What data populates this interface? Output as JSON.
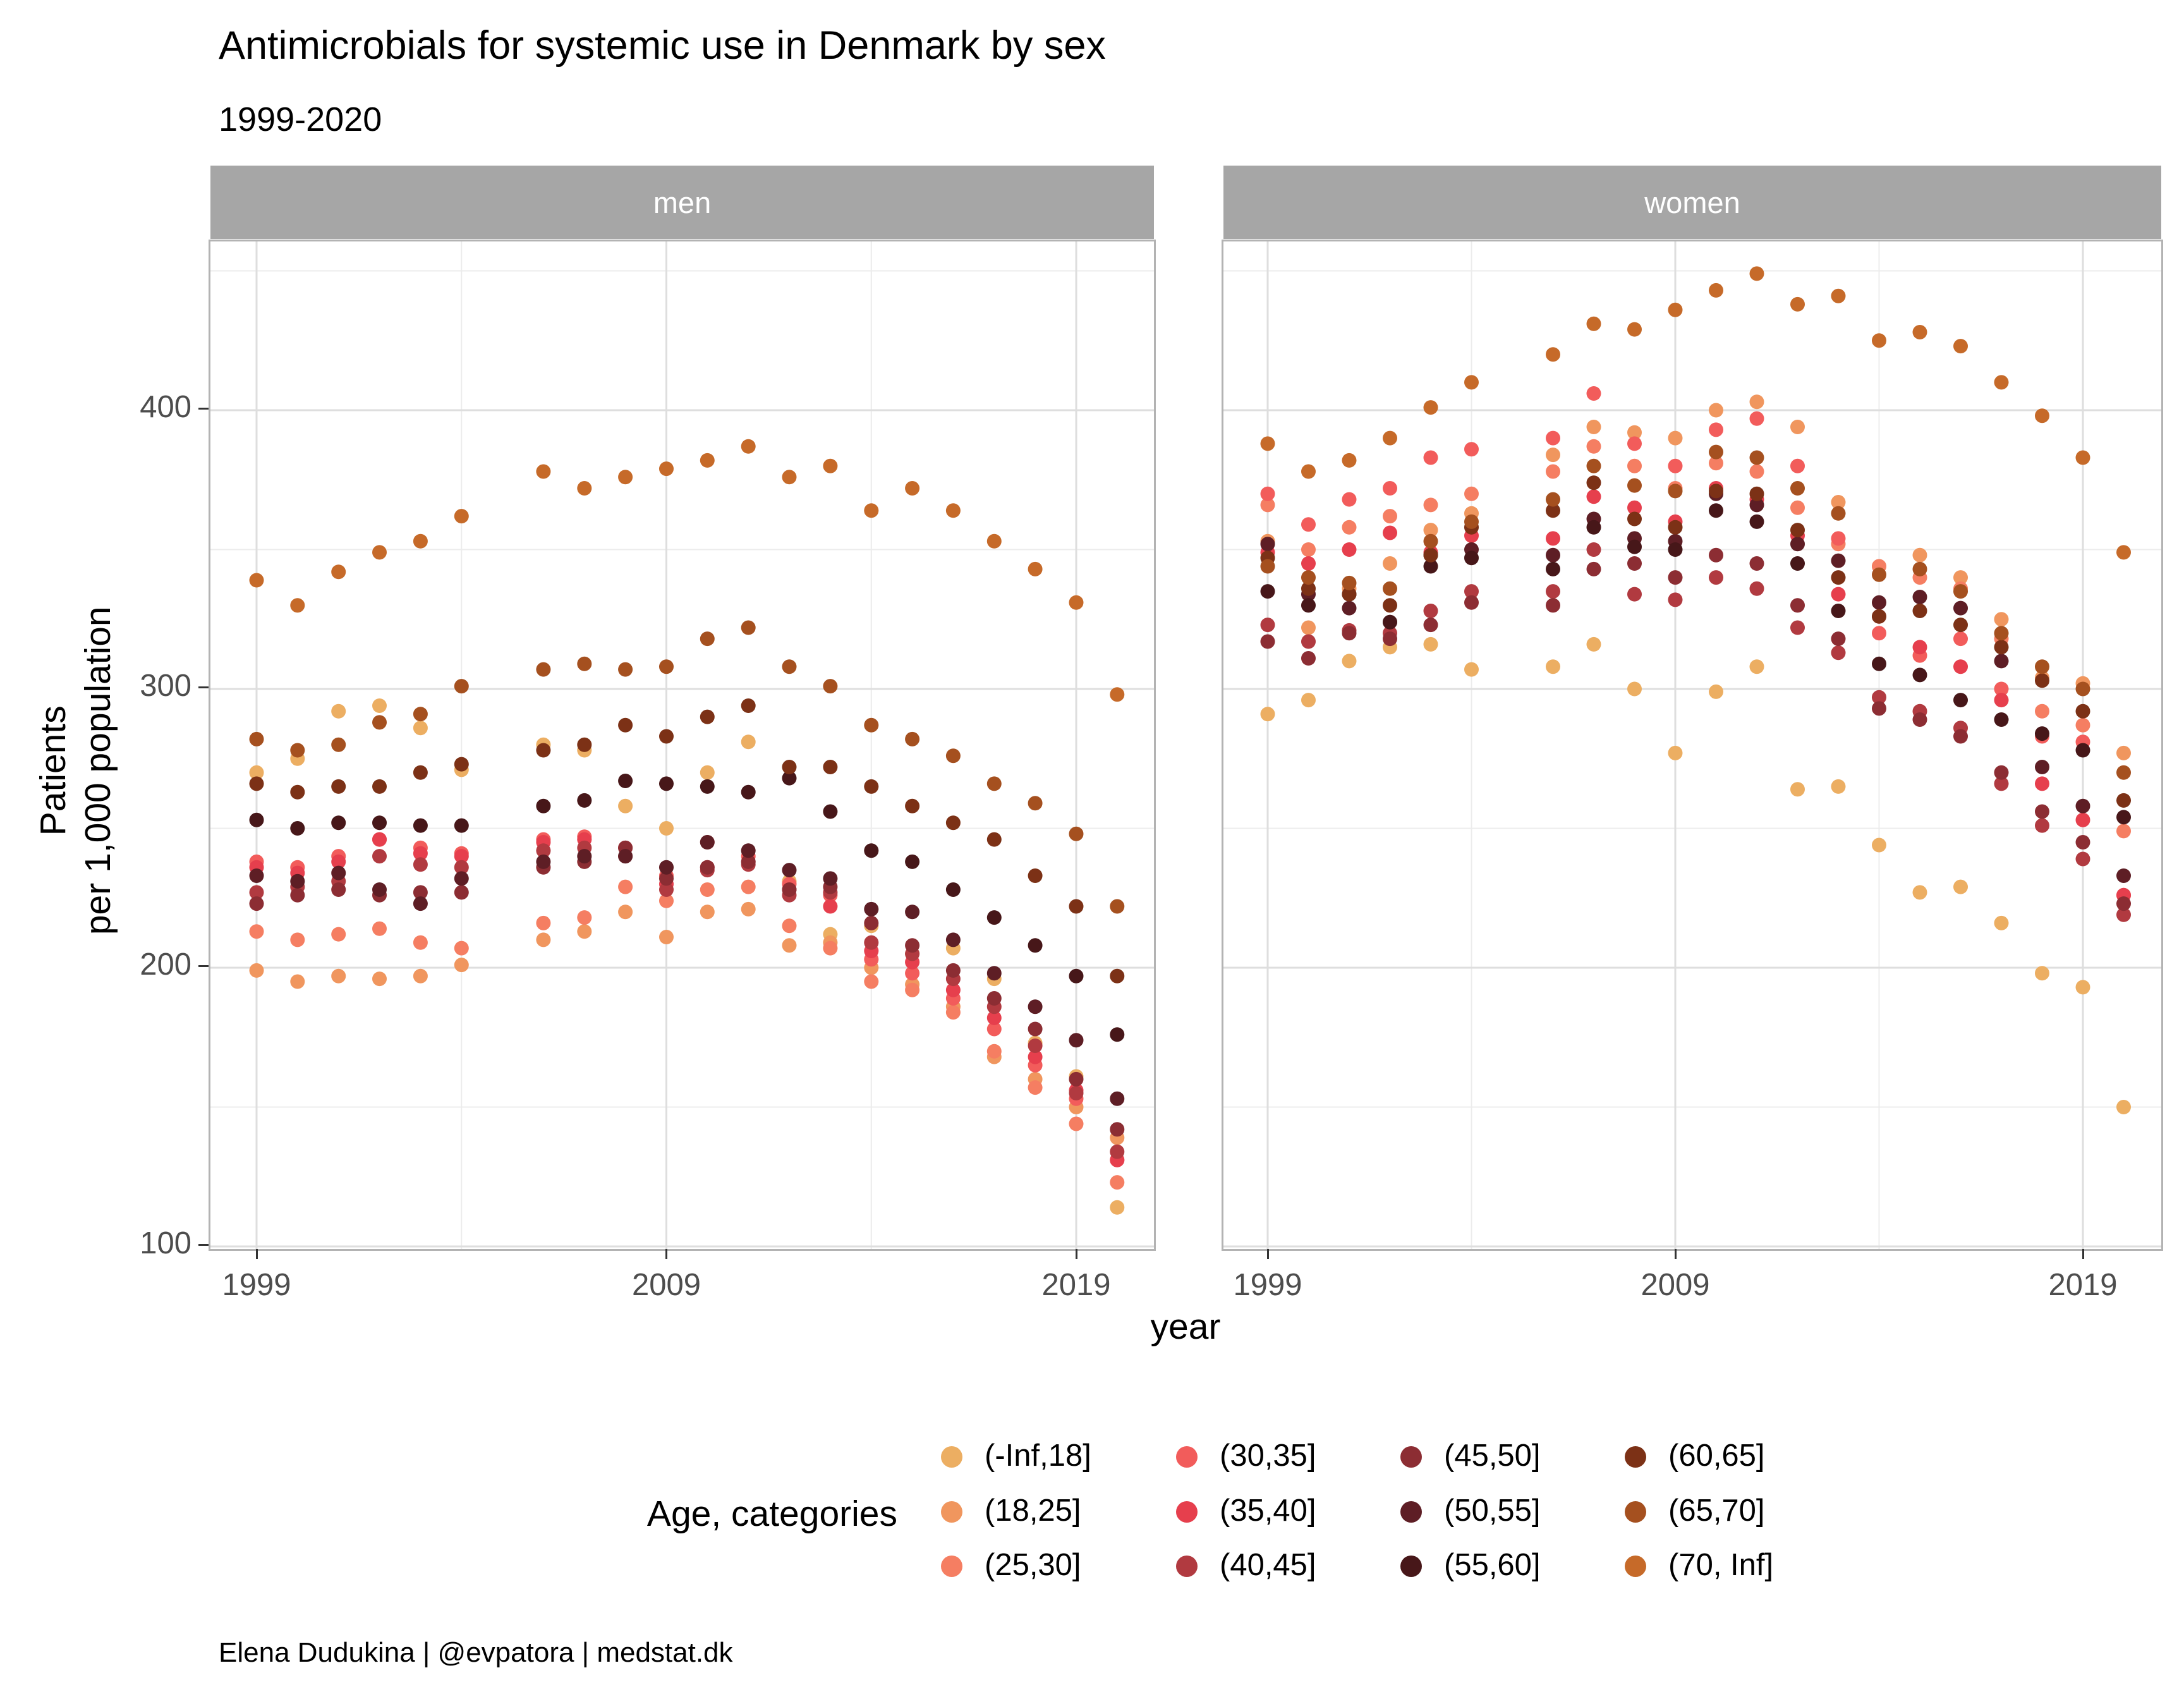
{
  "header": {
    "title": "Antimicrobials for systemic use in Denmark by sex",
    "subtitle": "1999-2020"
  },
  "footer": {
    "credit": "Elena Dudukina | @evpatora | medstat.dk"
  },
  "chart_data": {
    "type": "scatter",
    "title": "Antimicrobials for systemic use in Denmark by sex",
    "subtitle": "1999-2020",
    "xlabel": "year",
    "ylabel": [
      "Patients",
      "per 1,000 population"
    ],
    "legend_title": "Age, categories",
    "facets": [
      "men",
      "women"
    ],
    "x_ticks": [
      1999,
      2009,
      2019
    ],
    "x_minor": [
      2004,
      2014
    ],
    "y_ticks": [
      100,
      200,
      300,
      400
    ],
    "y_minor": [
      150,
      250,
      350,
      450
    ],
    "xlim": [
      1997.9,
      2020.9
    ],
    "ylim": [
      99,
      461
    ],
    "grid": {
      "major": "on",
      "minor": "on"
    },
    "years": [
      1999,
      2000,
      2001,
      2002,
      2003,
      2004,
      2006,
      2007,
      2008,
      2009,
      2010,
      2011,
      2012,
      2013,
      2014,
      2015,
      2016,
      2017,
      2018,
      2019,
      2020
    ],
    "series": [
      {
        "category": "(-Inf,18]",
        "color": "#ECAE62",
        "men": [
          270,
          275,
          292,
          294,
          286,
          271,
          280,
          278,
          258,
          250,
          270,
          281,
          231,
          212,
          215,
          205,
          207,
          196,
          173,
          161,
          114
        ],
        "women": [
          291,
          296,
          310,
          315,
          316,
          307,
          308,
          316,
          300,
          277,
          299,
          308,
          264,
          265,
          244,
          227,
          229,
          216,
          198,
          193,
          150
        ]
      },
      {
        "category": "(18,25]",
        "color": "#F0965E",
        "men": [
          199,
          195,
          197,
          196,
          197,
          201,
          210,
          213,
          220,
          211,
          220,
          221,
          208,
          209,
          200,
          194,
          186,
          168,
          160,
          150,
          139
        ],
        "women": [
          353,
          322,
          336,
          345,
          357,
          363,
          384,
          394,
          392,
          390,
          400,
          403,
          394,
          367,
          344,
          348,
          340,
          325,
          304,
          302,
          277
        ]
      },
      {
        "category": "(25,30]",
        "color": "#F57E62",
        "men": [
          213,
          210,
          212,
          214,
          209,
          207,
          216,
          218,
          229,
          224,
          228,
          229,
          215,
          207,
          195,
          192,
          184,
          170,
          157,
          144,
          123
        ],
        "women": [
          366,
          350,
          358,
          362,
          366,
          370,
          378,
          387,
          380,
          372,
          381,
          378,
          365,
          352,
          344,
          340,
          336,
          318,
          292,
          287,
          249
        ]
      },
      {
        "category": "(30,35]",
        "color": "#F25C5B",
        "men": [
          238,
          236,
          240,
          246,
          243,
          241,
          246,
          247,
          243,
          233,
          245,
          240,
          230,
          226,
          203,
          198,
          189,
          178,
          165,
          153,
          131
        ],
        "women": [
          370,
          359,
          368,
          372,
          383,
          386,
          390,
          406,
          388,
          380,
          393,
          397,
          380,
          354,
          320,
          312,
          318,
          300,
          283,
          281,
          226
        ]
      },
      {
        "category": "(35,40]",
        "color": "#E63F4D",
        "men": [
          236,
          234,
          238,
          246,
          241,
          240,
          245,
          246,
          243,
          230,
          236,
          238,
          228,
          222,
          206,
          202,
          192,
          182,
          168,
          156,
          131
        ],
        "women": [
          349,
          345,
          350,
          356,
          349,
          355,
          354,
          369,
          365,
          360,
          372,
          368,
          355,
          334,
          326,
          315,
          308,
          296,
          266,
          253,
          226
        ]
      },
      {
        "category": "(40,45]",
        "color": "#B13A40",
        "men": [
          227,
          229,
          231,
          240,
          237,
          236,
          242,
          243,
          240,
          228,
          235,
          237,
          226,
          227,
          209,
          205,
          196,
          186,
          172,
          155,
          134
        ],
        "women": [
          323,
          317,
          321,
          320,
          328,
          335,
          335,
          350,
          334,
          332,
          340,
          336,
          322,
          313,
          297,
          292,
          286,
          266,
          251,
          239,
          219
        ]
      },
      {
        "category": "(45,50]",
        "color": "#8C2D33",
        "men": [
          223,
          226,
          228,
          226,
          227,
          227,
          236,
          238,
          243,
          232,
          236,
          238,
          228,
          229,
          216,
          208,
          199,
          189,
          178,
          160,
          142
        ],
        "women": [
          317,
          311,
          320,
          318,
          323,
          331,
          330,
          343,
          345,
          340,
          348,
          345,
          330,
          318,
          293,
          289,
          283,
          270,
          256,
          245,
          223
        ]
      },
      {
        "category": "(50,55]",
        "color": "#5E1E25",
        "men": [
          233,
          231,
          234,
          228,
          223,
          232,
          238,
          240,
          240,
          236,
          245,
          242,
          235,
          232,
          221,
          220,
          210,
          198,
          186,
          174,
          153
        ],
        "women": [
          352,
          334,
          329,
          324,
          348,
          350,
          348,
          361,
          354,
          353,
          370,
          366,
          352,
          346,
          331,
          333,
          329,
          310,
          272,
          258,
          233
        ]
      },
      {
        "category": "(55,60]",
        "color": "#471719",
        "men": [
          253,
          250,
          252,
          252,
          251,
          251,
          258,
          260,
          267,
          266,
          265,
          263,
          268,
          256,
          242,
          238,
          228,
          218,
          208,
          197,
          176
        ],
        "women": [
          335,
          330,
          334,
          324,
          344,
          347,
          343,
          358,
          351,
          350,
          364,
          360,
          345,
          328,
          309,
          305,
          296,
          289,
          284,
          278,
          254
        ]
      },
      {
        "category": "(60,65]",
        "color": "#7C3116",
        "men": [
          266,
          263,
          265,
          265,
          270,
          273,
          278,
          280,
          287,
          283,
          290,
          294,
          272,
          272,
          265,
          258,
          252,
          246,
          233,
          222,
          197
        ],
        "women": [
          347,
          336,
          334,
          330,
          348,
          358,
          364,
          374,
          361,
          358,
          371,
          370,
          357,
          340,
          326,
          328,
          323,
          315,
          303,
          292,
          260
        ]
      },
      {
        "category": "(65,70]",
        "color": "#A5501F",
        "men": [
          282,
          278,
          280,
          288,
          291,
          301,
          307,
          309,
          307,
          308,
          318,
          322,
          308,
          301,
          287,
          282,
          276,
          266,
          259,
          248,
          222
        ],
        "women": [
          344,
          340,
          338,
          336,
          353,
          360,
          368,
          380,
          373,
          371,
          385,
          383,
          372,
          363,
          341,
          343,
          335,
          320,
          308,
          300,
          270
        ]
      },
      {
        "category": "(70, Inf]",
        "color": "#C66A29",
        "men": [
          339,
          330,
          342,
          349,
          353,
          362,
          378,
          372,
          376,
          379,
          382,
          387,
          376,
          380,
          364,
          372,
          364,
          353,
          343,
          331,
          298
        ],
        "women": [
          388,
          378,
          382,
          390,
          401,
          410,
          420,
          431,
          429,
          436,
          443,
          449,
          438,
          441,
          425,
          428,
          423,
          410,
          398,
          383,
          349
        ]
      }
    ],
    "style": {
      "grid_major_color": "#DEDEDE",
      "grid_minor_color": "#ECECEC",
      "panel_border_color": "#B3B3B3",
      "strip_fill": "#A6A6A6",
      "strip_text_color": "#FFFFFF",
      "tick_label_color": "#4D4D4D",
      "point_radius": 11.5
    }
  }
}
